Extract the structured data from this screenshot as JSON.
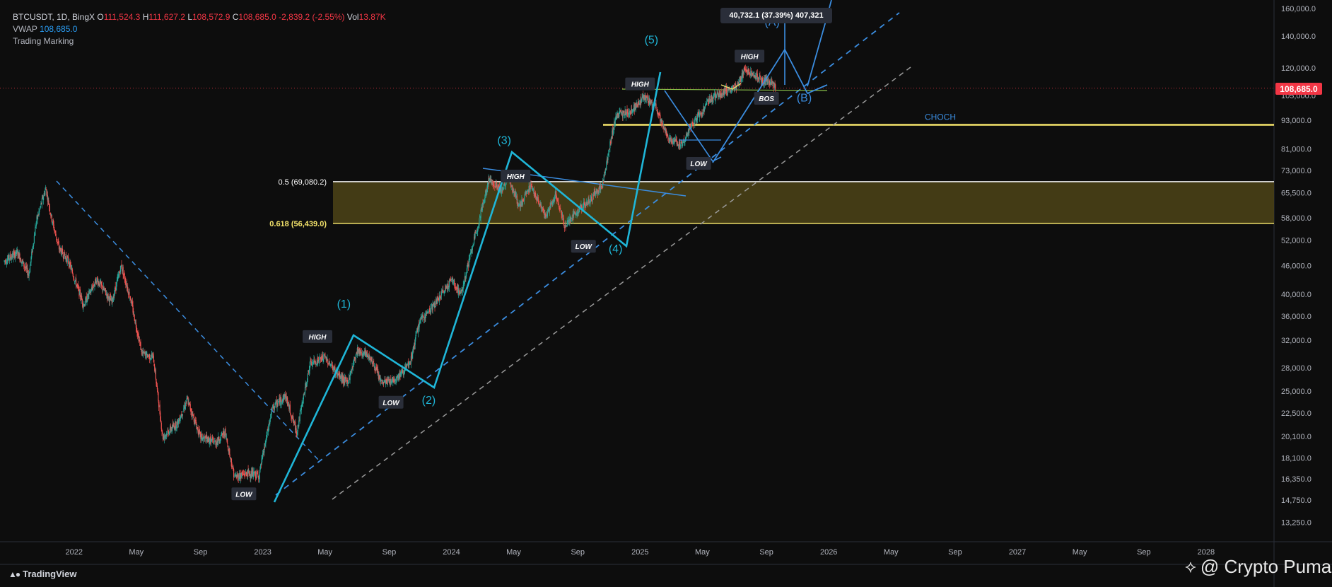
{
  "header": {
    "symbol": "BTCUSDT, 1D, BingX",
    "o_label": "O",
    "o_value": "111,524.3",
    "h_label": "H",
    "h_value": "111,627.2",
    "l_label": "L",
    "l_value": "108,572.9",
    "c_label": "C",
    "c_value": "108,685.0",
    "change": "-2,839.2 (-2.55%)",
    "vol_label": "Vol",
    "vol_value": "13.87K",
    "vwap_label": "VWAP",
    "vwap_value": "108,685.0",
    "indicator2": "Trading Marking"
  },
  "footer": {
    "brand": "TradingView",
    "watermark": "@ Crypto Puma"
  },
  "colors": {
    "background": "#0d0d0d",
    "up": "#26a69a",
    "down": "#ef5350",
    "wave": "#1fb6d8",
    "dashed": "#3b8de0",
    "fib_band": "#4d4418",
    "yellow": "#f5e46b",
    "label": "#ffffff"
  },
  "chart_data": {
    "type": "candlestick",
    "price_scale": "log",
    "y_ticks": [
      {
        "v": 160000,
        "t": "160,000.0"
      },
      {
        "v": 140000,
        "t": "140,000.0"
      },
      {
        "v": 120000,
        "t": "120,000.0"
      },
      {
        "v": 105000,
        "t": "105,000.0"
      },
      {
        "v": 93000,
        "t": "93,000.0"
      },
      {
        "v": 81000,
        "t": "81,000.0"
      },
      {
        "v": 73000,
        "t": "73,000.0"
      },
      {
        "v": 65500,
        "t": "65,500.0"
      },
      {
        "v": 58000,
        "t": "58,000.0"
      },
      {
        "v": 52000,
        "t": "52,000.0"
      },
      {
        "v": 46000,
        "t": "46,000.0"
      },
      {
        "v": 40000,
        "t": "40,000.0"
      },
      {
        "v": 36000,
        "t": "36,000.0"
      },
      {
        "v": 32000,
        "t": "32,000.0"
      },
      {
        "v": 28000,
        "t": "28,000.0"
      },
      {
        "v": 25000,
        "t": "25,000.0"
      },
      {
        "v": 22500,
        "t": "22,500.0"
      },
      {
        "v": 20100,
        "t": "20,100.0"
      },
      {
        "v": 18100,
        "t": "18,100.0"
      },
      {
        "v": 16350,
        "t": "16,350.0"
      },
      {
        "v": 14750,
        "t": "14,750.0"
      },
      {
        "v": 13250,
        "t": "13,250.0"
      }
    ],
    "x_ticks": [
      {
        "d": 2022.0,
        "t": "2022"
      },
      {
        "d": 2022.33,
        "t": "May"
      },
      {
        "d": 2022.67,
        "t": "Sep"
      },
      {
        "d": 2023.0,
        "t": "2023"
      },
      {
        "d": 2023.33,
        "t": "May"
      },
      {
        "d": 2023.67,
        "t": "Sep"
      },
      {
        "d": 2024.0,
        "t": "2024"
      },
      {
        "d": 2024.33,
        "t": "May"
      },
      {
        "d": 2024.67,
        "t": "Sep"
      },
      {
        "d": 2025.0,
        "t": "2025"
      },
      {
        "d": 2025.33,
        "t": "May"
      },
      {
        "d": 2025.67,
        "t": "Sep"
      },
      {
        "d": 2026.0,
        "t": "2026"
      },
      {
        "d": 2026.33,
        "t": "May"
      },
      {
        "d": 2026.67,
        "t": "Sep"
      },
      {
        "d": 2027.0,
        "t": "2027"
      },
      {
        "d": 2027.33,
        "t": "May"
      },
      {
        "d": 2027.67,
        "t": "Sep"
      },
      {
        "d": 2028.0,
        "t": "2028"
      }
    ],
    "current_price": {
      "v": 108685,
      "label": "108,685.0"
    },
    "price_path": [
      [
        2021.63,
        47000
      ],
      [
        2021.7,
        49000
      ],
      [
        2021.76,
        44000
      ],
      [
        2021.8,
        57000
      ],
      [
        2021.85,
        67000
      ],
      [
        2021.88,
        58000
      ],
      [
        2021.92,
        50000
      ],
      [
        2021.97,
        47000
      ],
      [
        2022.05,
        38000
      ],
      [
        2022.12,
        43000
      ],
      [
        2022.2,
        38500
      ],
      [
        2022.25,
        46000
      ],
      [
        2022.3,
        39000
      ],
      [
        2022.36,
        30000
      ],
      [
        2022.42,
        29500
      ],
      [
        2022.47,
        20000
      ],
      [
        2022.55,
        21500
      ],
      [
        2022.6,
        24000
      ],
      [
        2022.67,
        20000
      ],
      [
        2022.75,
        19500
      ],
      [
        2022.8,
        20500
      ],
      [
        2022.85,
        16500
      ],
      [
        2022.92,
        16800
      ],
      [
        2022.98,
        16600
      ],
      [
        2023.05,
        23000
      ],
      [
        2023.12,
        24500
      ],
      [
        2023.18,
        20500
      ],
      [
        2023.25,
        28500
      ],
      [
        2023.33,
        29500
      ],
      [
        2023.4,
        27000
      ],
      [
        2023.45,
        26000
      ],
      [
        2023.5,
        30500
      ],
      [
        2023.57,
        29500
      ],
      [
        2023.63,
        26000
      ],
      [
        2023.7,
        26500
      ],
      [
        2023.78,
        28500
      ],
      [
        2023.83,
        35000
      ],
      [
        2023.92,
        38500
      ],
      [
        2024.0,
        43000
      ],
      [
        2024.05,
        40000
      ],
      [
        2024.12,
        52000
      ],
      [
        2024.2,
        70000
      ],
      [
        2024.27,
        66000
      ],
      [
        2024.3,
        71000
      ],
      [
        2024.36,
        61000
      ],
      [
        2024.42,
        68000
      ],
      [
        2024.5,
        58000
      ],
      [
        2024.55,
        65000
      ],
      [
        2024.6,
        56000
      ],
      [
        2024.67,
        60000
      ],
      [
        2024.73,
        63000
      ],
      [
        2024.8,
        68000
      ],
      [
        2024.87,
        95000
      ],
      [
        2024.95,
        97000
      ],
      [
        2025.02,
        104000
      ],
      [
        2025.08,
        100000
      ],
      [
        2025.15,
        85000
      ],
      [
        2025.22,
        83000
      ],
      [
        2025.3,
        94000
      ],
      [
        2025.37,
        103000
      ],
      [
        2025.45,
        107000
      ],
      [
        2025.52,
        110000
      ],
      [
        2025.55,
        118000
      ],
      [
        2025.6,
        117000
      ],
      [
        2025.65,
        113000
      ],
      [
        2025.7,
        111500
      ],
      [
        2025.72,
        108685
      ]
    ],
    "fib_levels": [
      {
        "v": 69080,
        "label": "0.5 (69,080.2)"
      },
      {
        "v": 56439,
        "label": "0.618 (56,439.0)"
      }
    ],
    "choch": {
      "v": 91000,
      "label": "CHOCH"
    },
    "waves": [
      {
        "label": "(1)",
        "d": 2023.43,
        "v": 37500
      },
      {
        "label": "(2)",
        "d": 2023.88,
        "v": 23500
      },
      {
        "label": "(3)",
        "d": 2024.28,
        "v": 83000
      },
      {
        "label": "(4)",
        "d": 2024.87,
        "v": 49000
      },
      {
        "label": "(5)",
        "d": 2025.06,
        "v": 135000
      },
      {
        "label": "(A)",
        "d": 2025.7,
        "v": 147000
      },
      {
        "label": "(B)",
        "d": 2025.87,
        "v": 102000
      }
    ],
    "tags": [
      {
        "text": "LOW",
        "d": 2022.9,
        "v": 15200
      },
      {
        "text": "HIGH",
        "d": 2023.29,
        "v": 32600
      },
      {
        "text": "LOW",
        "d": 2023.68,
        "v": 23700
      },
      {
        "text": "HIGH",
        "d": 2024.34,
        "v": 71000
      },
      {
        "text": "LOW",
        "d": 2024.7,
        "v": 50500
      },
      {
        "text": "HIGH",
        "d": 2025.0,
        "v": 111000
      },
      {
        "text": "LOW",
        "d": 2025.31,
        "v": 75500
      },
      {
        "text": "HIGH",
        "d": 2025.58,
        "v": 127000
      },
      {
        "text": "BOS",
        "d": 2025.67,
        "v": 103500
      }
    ],
    "measure": "40,732.1 (37.39%) 407,321"
  }
}
